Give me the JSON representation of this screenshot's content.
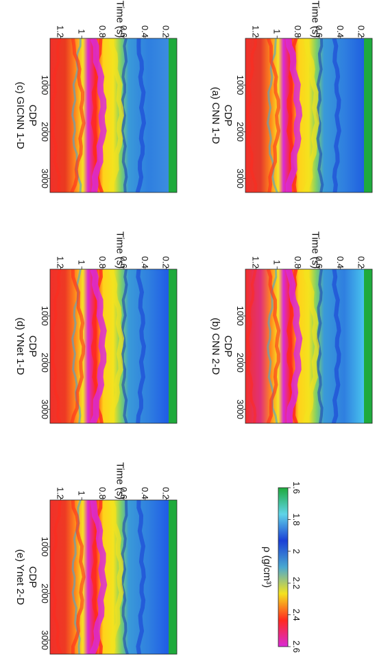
{
  "chart_data": [
    {
      "type": "heatmap",
      "caption": "(a) CNN 1-D",
      "xlabel": "CDP",
      "ylabel": "Time (s)",
      "xticks": [
        1000,
        2000,
        3000
      ],
      "yticks": [
        "0.2",
        "0.4",
        "0.6",
        "0.8",
        "1",
        "1.2"
      ],
      "xlim": [
        1,
        3300
      ],
      "ylim": [
        0.1,
        1.3
      ]
    },
    {
      "type": "heatmap",
      "caption": "(b) CNN 2-D",
      "xlabel": "CDP",
      "ylabel": "Time (s)",
      "xticks": [
        1000,
        2000,
        3000
      ],
      "yticks": [
        "0.2",
        "0.4",
        "0.6",
        "0.8",
        "1",
        "1.2"
      ],
      "xlim": [
        1,
        3300
      ],
      "ylim": [
        0.1,
        1.3
      ]
    },
    {
      "type": "heatmap",
      "caption": "(c) GICNN 1-D",
      "xlabel": "CDP",
      "ylabel": "Time (s)",
      "xticks": [
        1000,
        2000,
        3000
      ],
      "yticks": [
        "0.2",
        "0.4",
        "0.6",
        "0.8",
        "1",
        "1.2"
      ],
      "xlim": [
        1,
        3300
      ],
      "ylim": [
        0.1,
        1.3
      ]
    },
    {
      "type": "heatmap",
      "caption": "(d) YNet 1-D",
      "xlabel": "CDP",
      "ylabel": "Time (s)",
      "xticks": [
        1000,
        2000,
        3000
      ],
      "yticks": [
        "0.2",
        "0.4",
        "0.6",
        "0.8",
        "1",
        "1.2"
      ],
      "xlim": [
        1,
        3300
      ],
      "ylim": [
        0.1,
        1.3
      ]
    },
    {
      "type": "heatmap",
      "caption": "(e) Ynet 2-D",
      "xlabel": "CDP",
      "ylabel": "Time (s)",
      "xticks": [
        1000,
        2000,
        3000
      ],
      "yticks": [
        "0.2",
        "0.4",
        "0.6",
        "0.8",
        "1",
        "1.2"
      ],
      "xlim": [
        1,
        3300
      ],
      "ylim": [
        0.1,
        1.3
      ]
    }
  ],
  "colorbar": {
    "label": "ρ (g/cm³)",
    "ticks": [
      "1.6",
      "1.8",
      "2",
      "2.2",
      "2.4",
      "2.6"
    ],
    "range": [
      1.6,
      2.6
    ],
    "colors": [
      "#1faa3c",
      "#5fd4e8",
      "#1a3fd6",
      "#4aa8d0",
      "#f4e21e",
      "#ff2a1e",
      "#d92ad6"
    ]
  }
}
